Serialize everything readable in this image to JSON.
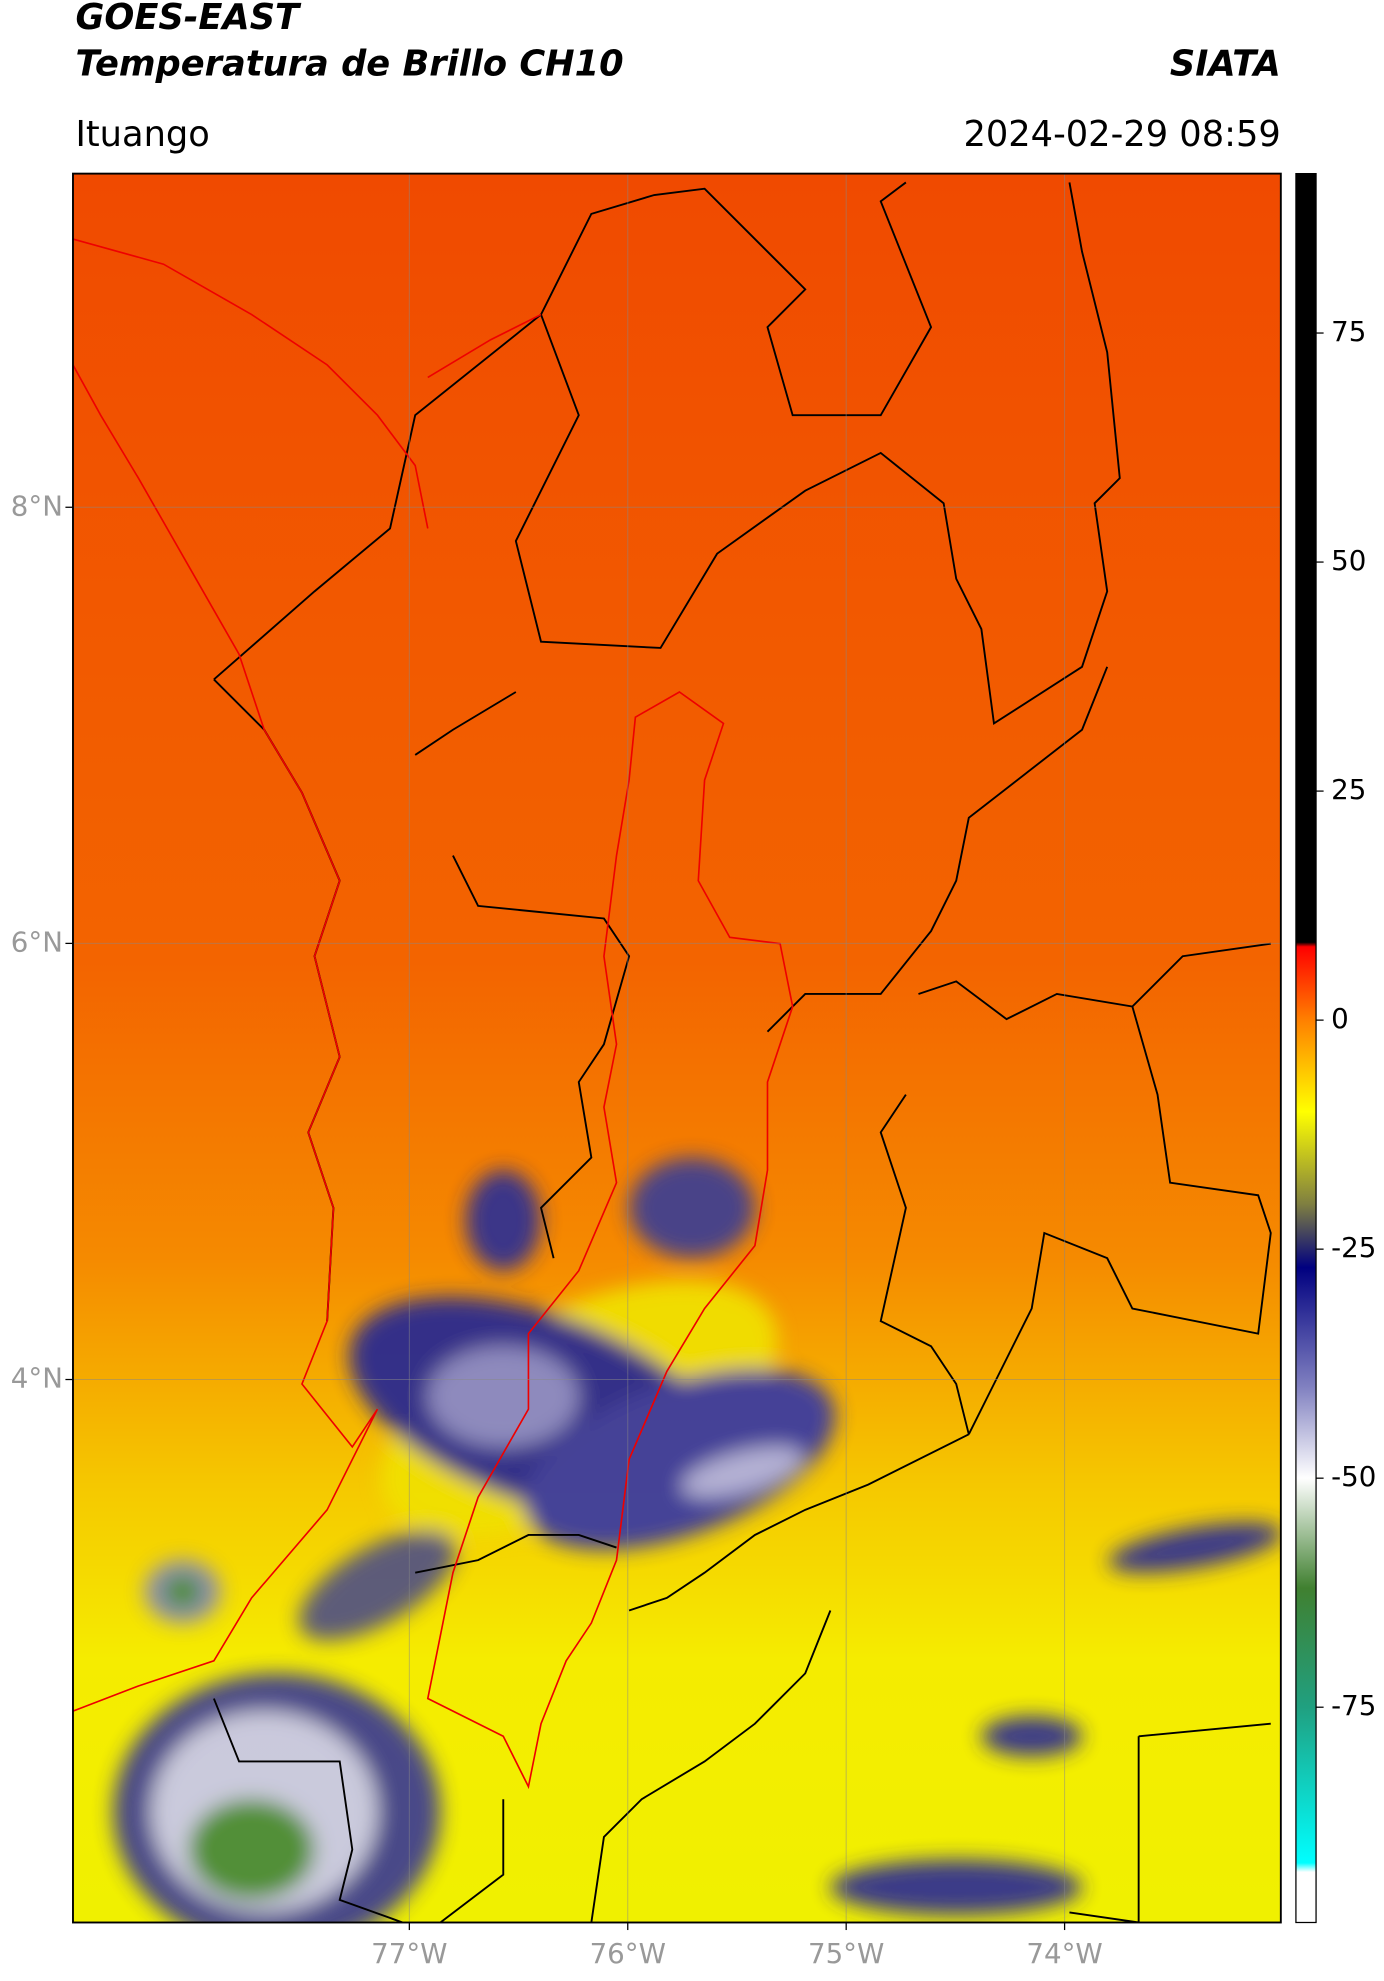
{
  "header": {
    "title": "GOES-EAST",
    "subtitle": "Temperatura de Brillo CH10",
    "source": "SIATA",
    "region": "Ituango",
    "datetime": "2024-02-29 08:59"
  },
  "map": {
    "xlim": [
      -78.54,
      -73.01
    ],
    "ylim": [
      1.51,
      9.53
    ],
    "xticks": [
      {
        "value": -77,
        "label": "77°W"
      },
      {
        "value": -76,
        "label": "76°W"
      },
      {
        "value": -75,
        "label": "75°W"
      },
      {
        "value": -74,
        "label": "74°W"
      }
    ],
    "yticks": [
      {
        "value": 8,
        "label": "8°N"
      },
      {
        "value": 6,
        "label": "6°N"
      },
      {
        "value": 4,
        "label": "4°N"
      }
    ],
    "grid": true
  },
  "colorbar": {
    "ylim": [
      -98.5,
      92.4
    ],
    "yticks": [
      75,
      50,
      25,
      0,
      -25,
      -50,
      -75
    ],
    "stops": [
      {
        "value": 92.4,
        "color": "#000000"
      },
      {
        "value": 8.5,
        "color": "#000000"
      },
      {
        "value": 8,
        "color": "#ff0000"
      },
      {
        "value": 0,
        "color": "#ff8000"
      },
      {
        "value": -10,
        "color": "#ffff00"
      },
      {
        "value": -20,
        "color": "#808040"
      },
      {
        "value": -27,
        "color": "#000080"
      },
      {
        "value": -40,
        "color": "#8080c0"
      },
      {
        "value": -50,
        "color": "#ffffff"
      },
      {
        "value": -62,
        "color": "#408030"
      },
      {
        "value": -75,
        "color": "#20a080"
      },
      {
        "value": -92,
        "color": "#00ffff"
      },
      {
        "value": -93,
        "color": "#ffffff"
      },
      {
        "value": -98.5,
        "color": "#ffffff"
      }
    ]
  }
}
